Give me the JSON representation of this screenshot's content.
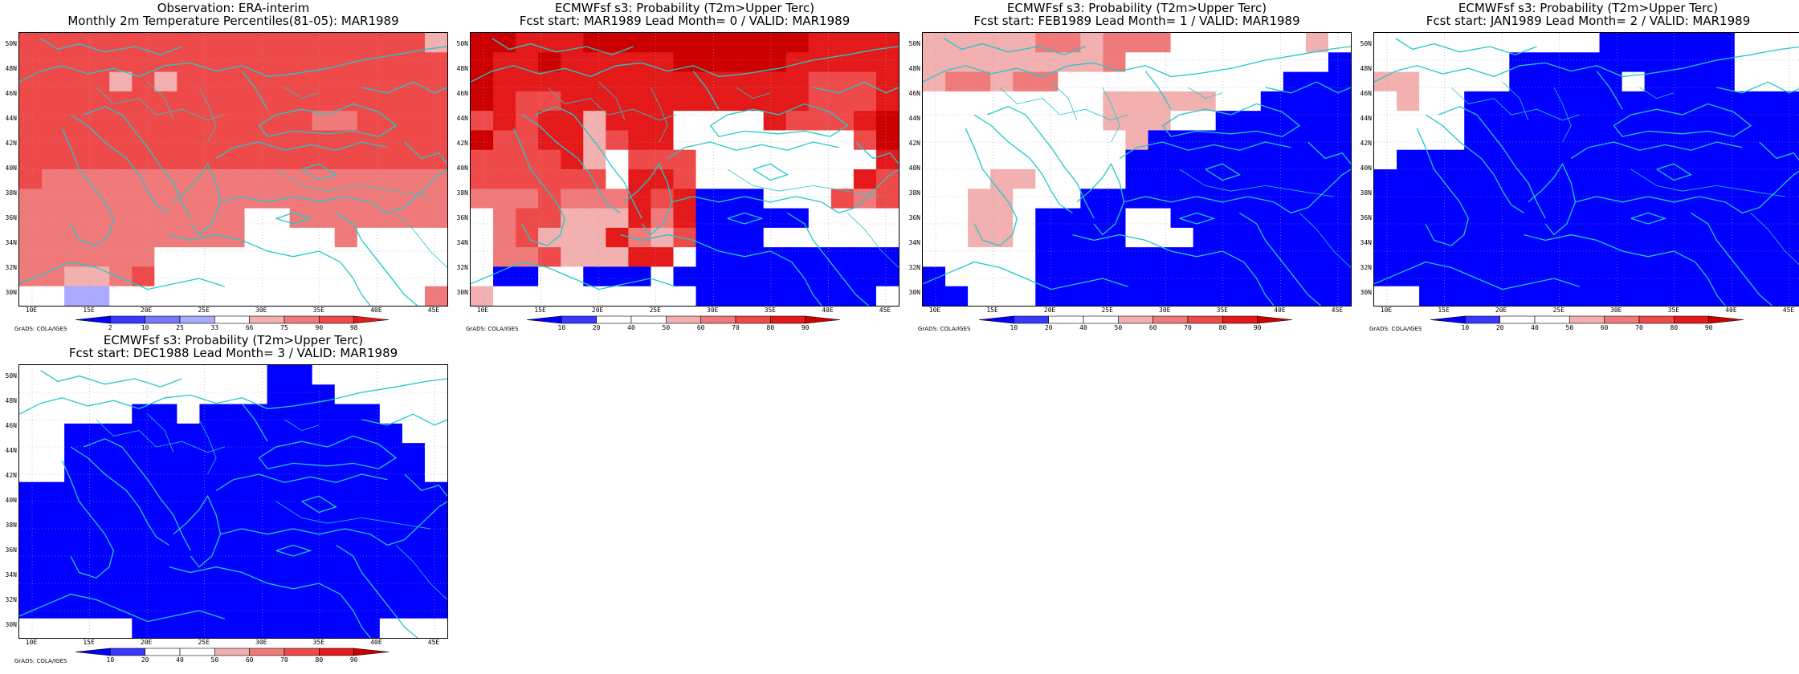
{
  "colors": {
    "blue_strong": "#0000ff",
    "blue_mid": "#3838ff",
    "blue_light": "#7777ff",
    "blue_pale": "#aaaaff",
    "white": "#ffffff",
    "red_pale": "#f2b0b0",
    "red_light": "#f07a7a",
    "red_mid": "#ef4a4a",
    "red_strong": "#e41a1a",
    "red_dark": "#cc0000",
    "coast": "#22c8c8"
  },
  "map": {
    "lat_labels": [
      "50N",
      "48N",
      "46N",
      "44N",
      "42N",
      "40N",
      "38N",
      "36N",
      "34N",
      "32N",
      "30N"
    ],
    "lon_labels": [
      "10E",
      "15E",
      "20E",
      "25E",
      "30E",
      "35E",
      "40E",
      "45E"
    ],
    "credit": "GrADS: COLA/IGES"
  },
  "colorbar_obs": {
    "labels": [
      "2",
      "10",
      "25",
      "33",
      "66",
      "75",
      "90",
      "98"
    ],
    "colors": [
      "#0000ff",
      "#3838ff",
      "#7777ff",
      "#aaaaff",
      "#ffffff",
      "#f2b0b0",
      "#f07a7a",
      "#ef4a4a",
      "#e41a1a"
    ]
  },
  "colorbar_prob": {
    "labels": [
      "10",
      "20",
      "40",
      "50",
      "60",
      "70",
      "80",
      "90"
    ],
    "colors": [
      "#0000ff",
      "#3838ff",
      "#ffffff",
      "#ffffff",
      "#f2b0b0",
      "#f07a7a",
      "#ef4a4a",
      "#e41a1a",
      "#cc0000"
    ]
  },
  "panels": [
    {
      "title1": "Observation: ERA-interim",
      "title2": "Monthly 2m Temperature Percentiles(81-05): MAR1989",
      "bar": "obs",
      "grid": [
        "RRRRRRRRRRRRRRRRRRP",
        "RRRRRRRRRRRRRRRRRRR",
        "RRRRPRPRRRRRRRRRRRR",
        "RRRRRRRRRRRRRRRRRRR",
        "RRRRRRRRRRRRRQQRRRR",
        "RRRRRRRRRRRRRRRRRRR",
        "RRRRRRRRRRRRRRRRRRR",
        "RQQQQQQQQQQQQQQQQQQ",
        "QQQQQQQQQQQQQQQQQQQ",
        "QQQQQQQQQQWWQQQQQQQ",
        "QQQQQQQQQQWWWWQWWWW",
        "QQQQQQWWWWWWWWWWWWW",
        "QQPPQRWWWWWWWWWWWWW",
        "WWccWWWWWWWWWWWWWWQ"
      ]
    },
    {
      "title1": "ECMWFsf s3: Probability (T2m>Upper Terc)",
      "title2": "Fcst start: MAR1989  Lead Month= 0 / VALID: MAR1989",
      "bar": "prob",
      "grid": [
        "DDSSSDDDDDDDDDDSSSS",
        "DSSDSSSSSDDDDDSSSSS",
        "DSSSSSSSSSSSSSSRRRS",
        "DSRRSSSSSSSSSSSRRRS",
        "RSRSSPSSSWWWWSRRRSD",
        "DRRSSPRSSWWWWWWWWRD",
        "RRRRSPWRRRWWWWWWWWS",
        "RRRRRRWSSRWWWWWWWSR",
        "QQQRQQQSRSBBBWWWRQR",
        "WQRRPPPSQSBBBBBWWWW",
        "WQRPPPSQPRBBBWWWWWW",
        "WQQRPPPSSWBBBBBBBBB",
        "WBBWWBBBWBBBBBBBBBB",
        "PWWWWWWWWWBBBBBBBBW"
      ]
    },
    {
      "title1": "ECMWFsf s3: Probability (T2m>Upper Terc)",
      "title2": "Fcst start: FEB1989  Lead Month= 1 / VALID: MAR1989",
      "bar": "prob",
      "grid": [
        "PPPPPQQPQQQWWWWWWPW",
        "PPPPPPPPQWWWWWWWWWB",
        "PQQPQQWWWWWWWWWWBBB",
        "WWWWWWWWPPPPPWWBBBB",
        "WWWWWWWWPPPWWBBBBBB",
        "WWWWWWWWWPBBBBBBBBB",
        "WWWWWWWWWBBBBBBBBBB",
        "WWWPPWWWWBBBBBBBBBB",
        "WWPPWWWBBBBBBBBBBBB",
        "WWPPWBBBBWWBBBBBBBB",
        "WWPPWBBBBWWWBBBBBBB",
        "WWWWWBBBBBBBBBBBBBB",
        "BWWWWBBBBBBBBBBBBBB",
        "BBWWWBBBBBBBBBBBBBB"
      ]
    },
    {
      "title1": "ECMWFsf s3: Probability (T2m>Upper Terc)",
      "title2": "Fcst start: JAN1989  Lead Month= 2 / VALID: MAR1989",
      "bar": "prob",
      "grid": [
        "WWWWWWWWWWBBBBBBWWW",
        "WWWWWWBBBBBBBBBBWWW",
        "PPWWWWBBBBBWBBBBWWW",
        "WPWWBBBBBBBBBBBBBBB",
        "WWWWBBBBBBBBBBBBBBB",
        "WWWWBBBBBBBBBBBBBBB",
        "WBBBBBBBBBBBBBBBBBB",
        "BBBBBBBBBBBBBBBBBBB",
        "BBBBBBBBBBBBBBBBBBB",
        "BBBBBBBBBBBBBBBBBBB",
        "BBBBBBBBBBBBBBBBBBB",
        "BBBBBBBBBBBBBBBBBBB",
        "BBBBBBBBBBBBBBBBBBB",
        "WWBBBBBBBBBBBBBBBBB"
      ]
    },
    {
      "title1": "ECMWFsf s3: Probability (T2m>Upper Terc)",
      "title2": "Fcst start: DEC1988  Lead Month= 3 / VALID: MAR1989",
      "bar": "prob",
      "grid": [
        "WWWWWWWWWWWBBWWWWWW",
        "WWWWWWWWWWWBBBWWWWW",
        "WWWWWBBWBBBBBBBBWWW",
        "WWBBBBBBBBBBBBBBBWW",
        "WWBBBBBBBBBBBBBBBBW",
        "WWBBBBBBBBBBBBBBBBW",
        "BBBBBBBBBBBBBBBBBBB",
        "BBBBBBBBBBBBBBBBBBB",
        "BBBBBBBBBBBBBBBBBBB",
        "BBBBBBBBBBBBBBBBBBB",
        "BBBBBBBBBBBBBBBBBBB",
        "BBBBBBBBBBBBBBBBBBB",
        "BBBBBBBBBBBBBBBBBBB",
        "WWWWWBBBBBBBBBBBWWW"
      ]
    }
  ]
}
